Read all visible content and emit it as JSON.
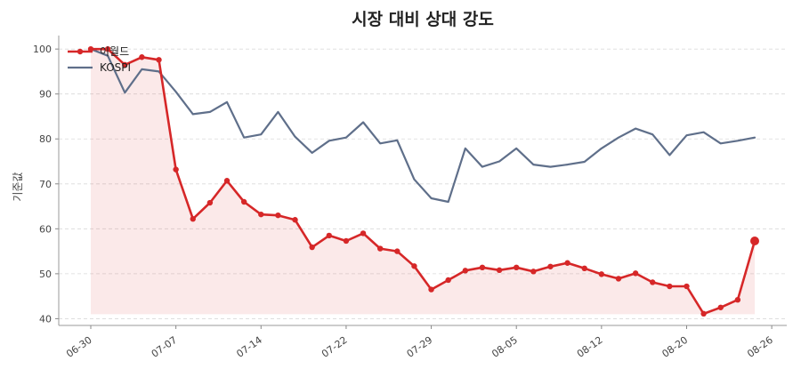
{
  "chart_data": {
    "type": "line",
    "title": "시장 대비 상대 강도",
    "xlabel": "",
    "ylabel": "기준값",
    "ylim": [
      38.5,
      103
    ],
    "y_ticks": [
      40,
      50,
      60,
      70,
      80,
      90,
      100
    ],
    "x_tick_labels": [
      "06-30",
      "07-07",
      "07-14",
      "07-22",
      "07-29",
      "08-05",
      "08-12",
      "08-20",
      "08-26"
    ],
    "x_tick_indices": [
      0,
      5,
      10,
      15,
      20,
      25,
      30,
      35,
      40
    ],
    "grid": "horizontal dashed",
    "legend_position": "top-left",
    "series": [
      {
        "name": "이월드",
        "color": "#d62728",
        "markers": true,
        "fill": true,
        "values": [
          100,
          100,
          96.5,
          98.2,
          97.6,
          73.2,
          62.2,
          65.8,
          70.7,
          66.0,
          63.2,
          63.0,
          62.0,
          55.9,
          58.5,
          57.3,
          59.0,
          55.6,
          55.0,
          51.7,
          46.5,
          48.6,
          50.7,
          51.4,
          50.8,
          51.4,
          50.5,
          51.6,
          52.4,
          51.2,
          49.9,
          48.9,
          50.1,
          48.1,
          47.2,
          47.2,
          41.1,
          42.5,
          44.2,
          57.3
        ]
      },
      {
        "name": "KOSPI",
        "color": "#5f6f8a",
        "markers": false,
        "fill": false,
        "values": [
          100,
          98.5,
          90.3,
          95.5,
          95.0,
          90.5,
          85.5,
          86.0,
          88.2,
          80.3,
          81.0,
          86.0,
          80.5,
          76.9,
          79.6,
          80.3,
          83.7,
          79.0,
          79.7,
          71.0,
          66.8,
          66.0,
          77.9,
          73.8,
          75.0,
          77.9,
          74.3,
          73.8,
          74.3,
          74.9,
          77.9,
          80.3,
          82.3,
          81.0,
          76.4,
          80.8,
          81.5,
          79.0,
          79.6,
          80.3
        ]
      }
    ]
  }
}
